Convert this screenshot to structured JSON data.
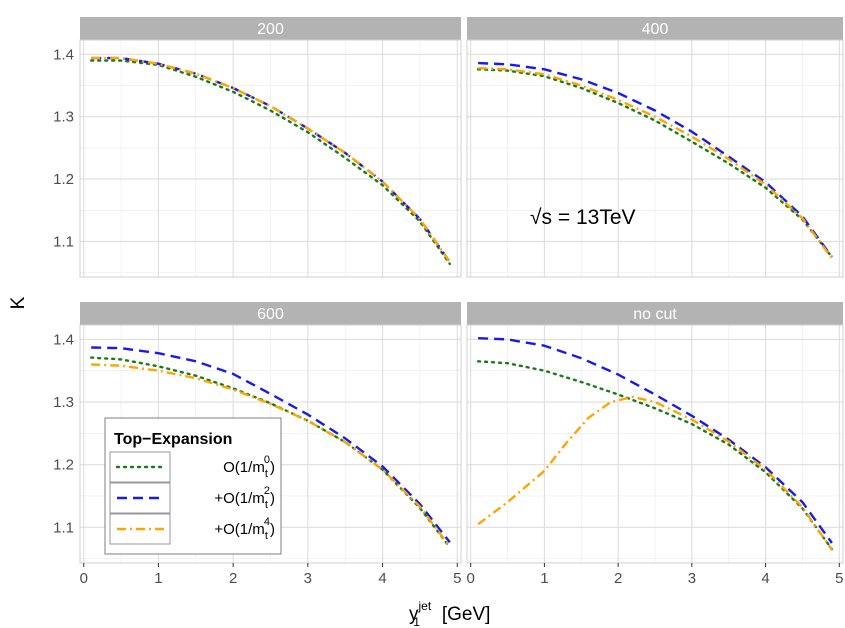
{
  "chart_data": {
    "type": "line",
    "facets": [
      {
        "label": "200",
        "series": [
          {
            "x": [
              0.1,
              0.5,
              1.0,
              1.5,
              2.0,
              2.5,
              3.0,
              3.5,
              4.0,
              4.5,
              4.9
            ],
            "y": [
              1.39,
              1.39,
              1.383,
              1.364,
              1.34,
              1.31,
              1.275,
              1.234,
              1.19,
              1.132,
              1.064
            ]
          },
          {
            "x": [
              0.1,
              0.5,
              1.0,
              1.5,
              2.0,
              2.5,
              3.0,
              3.5,
              4.0,
              4.5,
              4.9
            ],
            "y": [
              1.394,
              1.394,
              1.385,
              1.369,
              1.346,
              1.317,
              1.281,
              1.242,
              1.196,
              1.136,
              1.067
            ]
          },
          {
            "x": [
              0.1,
              0.5,
              1.0,
              1.5,
              2.0,
              2.5,
              3.0,
              3.5,
              4.0,
              4.5,
              4.9
            ],
            "y": [
              1.394,
              1.394,
              1.385,
              1.369,
              1.346,
              1.317,
              1.281,
              1.242,
              1.196,
              1.136,
              1.067
            ]
          }
        ]
      },
      {
        "label": "400",
        "series": [
          {
            "x": [
              0.1,
              0.5,
              1.0,
              1.5,
              2.0,
              2.5,
              3.0,
              3.5,
              4.0,
              4.5,
              4.9
            ],
            "y": [
              1.376,
              1.374,
              1.365,
              1.346,
              1.322,
              1.294,
              1.26,
              1.225,
              1.186,
              1.135,
              1.075
            ]
          },
          {
            "x": [
              0.1,
              0.5,
              1.0,
              1.5,
              2.0,
              2.5,
              3.0,
              3.5,
              4.0,
              4.5,
              4.9
            ],
            "y": [
              1.386,
              1.384,
              1.376,
              1.36,
              1.338,
              1.31,
              1.276,
              1.236,
              1.195,
              1.14,
              1.075
            ]
          },
          {
            "x": [
              0.1,
              0.5,
              1.0,
              1.5,
              2.0,
              2.5,
              3.0,
              3.5,
              4.0,
              4.5,
              4.9
            ],
            "y": [
              1.378,
              1.376,
              1.368,
              1.35,
              1.327,
              1.3,
              1.268,
              1.232,
              1.191,
              1.137,
              1.073
            ]
          }
        ],
        "annotation": "√s = 13TeV"
      },
      {
        "label": "600",
        "series": [
          {
            "x": [
              0.1,
              0.5,
              1.0,
              1.5,
              2.0,
              2.5,
              3.0,
              3.5,
              4.0,
              4.5,
              4.9
            ],
            "y": [
              1.371,
              1.368,
              1.357,
              1.342,
              1.322,
              1.298,
              1.27,
              1.236,
              1.192,
              1.131,
              1.068
            ]
          },
          {
            "x": [
              0.1,
              0.5,
              1.0,
              1.5,
              2.0,
              2.5,
              3.0,
              3.5,
              4.0,
              4.5,
              4.9
            ],
            "y": [
              1.387,
              1.386,
              1.378,
              1.365,
              1.345,
              1.313,
              1.28,
              1.242,
              1.197,
              1.137,
              1.076
            ]
          },
          {
            "x": [
              0.1,
              0.5,
              1.0,
              1.5,
              2.0,
              2.5,
              3.0,
              3.5,
              4.0,
              4.5,
              4.9
            ],
            "y": [
              1.36,
              1.358,
              1.35,
              1.338,
              1.32,
              1.297,
              1.27,
              1.236,
              1.192,
              1.133,
              1.069
            ]
          }
        ]
      },
      {
        "label": "no cut",
        "series": [
          {
            "x": [
              0.1,
              0.5,
              1.0,
              1.5,
              2.0,
              2.5,
              3.0,
              3.5,
              4.0,
              4.5,
              4.9
            ],
            "y": [
              1.365,
              1.362,
              1.35,
              1.332,
              1.312,
              1.29,
              1.265,
              1.232,
              1.188,
              1.13,
              1.065
            ]
          },
          {
            "x": [
              0.1,
              0.5,
              1.0,
              1.5,
              2.0,
              2.5,
              3.0,
              3.5,
              4.0,
              4.5,
              4.9
            ],
            "y": [
              1.402,
              1.4,
              1.39,
              1.37,
              1.344,
              1.312,
              1.278,
              1.24,
              1.196,
              1.14,
              1.075
            ]
          },
          {
            "x": [
              0.1,
              0.5,
              1.0,
              1.3,
              1.6,
              1.9,
              2.2,
              2.5,
              3.0,
              3.5,
              4.0,
              4.5,
              4.9
            ],
            "y": [
              1.105,
              1.14,
              1.19,
              1.235,
              1.275,
              1.3,
              1.308,
              1.3,
              1.272,
              1.237,
              1.192,
              1.132,
              1.064
            ]
          }
        ]
      }
    ],
    "xlabel": "y₁jet [GeV]",
    "ylabel": "K",
    "xlim": [
      -0.05,
      5.05
    ],
    "ylim": [
      1.043,
      1.423
    ],
    "xticks": [
      "0",
      "1",
      "2",
      "3",
      "4",
      "5"
    ],
    "yticks": [
      "1.1",
      "1.2",
      "1.3",
      "1.4"
    ],
    "grid": true,
    "legend": {
      "title": "Top−Expansion",
      "position": "bottom-left",
      "entries": [
        "O(1/m_t^0)",
        "+O(1/m_t^2)",
        "+O(1/m_t^4)"
      ],
      "colors": [
        "#1b7a1b",
        "#1a1aee",
        "#ffa500"
      ],
      "linetypes": [
        "dotted",
        "dashed",
        "dotdash"
      ]
    }
  }
}
